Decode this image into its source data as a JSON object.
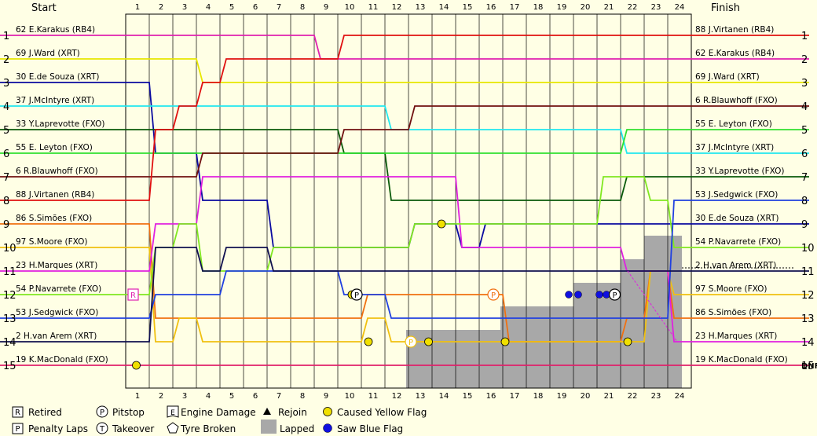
{
  "chart_data": {
    "type": "line",
    "title_left": "Start",
    "title_right": "Finish",
    "laps": [
      1,
      2,
      3,
      4,
      5,
      6,
      7,
      8,
      9,
      10,
      11,
      12,
      13,
      14,
      15,
      16,
      17,
      18,
      19,
      20,
      21,
      22,
      23,
      24
    ],
    "positions": [
      1,
      2,
      3,
      4,
      5,
      6,
      7,
      8,
      9,
      10,
      11,
      12,
      13,
      14,
      15
    ],
    "start_labels": [
      "62 E.Karakus (RB4)",
      "69 J.Ward (XRT)",
      "30 E.de Souza (XRT)",
      "37 J.McIntyre (XRT)",
      "33 Y.Laprevotte (FXO)",
      "55 E. Leyton (FXO)",
      "6 R.Blauwhoff (FXO)",
      "88 J.Virtanen (RB4)",
      "86 S.Simões (FXO)",
      "97 S.Moore (FXO)",
      "23 H.Marques (XRT)",
      "54 P.Navarrete (FXO)",
      "53 J.Sedgwick (FXO)",
      "2 H.van Arem (XRT)",
      "19 K.MacDonald (FXO)"
    ],
    "finish_labels": [
      "88 J.Virtanen (RB4)",
      "62 E.Karakus (RB4)",
      "69 J.Ward (XRT)",
      "6 R.Blauwhoff (FXO)",
      "55 E. Leyton (FXO)",
      "37 J.McIntyre (XRT)",
      "33 Y.Laprevotte (FXO)",
      "53 J.Sedgwick (FXO)",
      "30 E.de Souza (XRT)",
      "54 P.Navarrete (FXO)",
      "2 H.van Arem (XRT)",
      "97 S.Moore (FXO)",
      "86 S.Simões (FXO)",
      "23 H.Marques (XRT)",
      "19 K.MacDonald (FXO)"
    ],
    "dnf_label": "DNF",
    "series": [
      {
        "name": "62 E.Karakus (RB4)",
        "color": "#e020b0",
        "positions": [
          1,
          1,
          1,
          1,
          1,
          1,
          1,
          1,
          1,
          2,
          2,
          2,
          2,
          2,
          2,
          2,
          2,
          2,
          2,
          2,
          2,
          2,
          2,
          2,
          2
        ]
      },
      {
        "name": "69 J.Ward (XRT)",
        "color": "#e8e800",
        "positions": [
          2,
          2,
          2,
          2,
          3,
          3,
          3,
          3,
          3,
          3,
          3,
          3,
          3,
          3,
          3,
          3,
          3,
          3,
          3,
          3,
          3,
          3,
          3,
          3,
          3
        ]
      },
      {
        "name": "30 E.de Souza (XRT)",
        "color": "#0a0aa0",
        "positions": [
          3,
          3,
          6,
          6,
          8,
          8,
          8,
          10,
          10,
          10,
          10,
          10,
          10,
          9,
          9,
          10,
          9,
          9,
          9,
          9,
          9,
          9,
          9,
          9,
          9
        ]
      },
      {
        "name": "37 J.McIntyre (XRT)",
        "color": "#20e8f0",
        "positions": [
          4,
          4,
          4,
          4,
          4,
          4,
          4,
          4,
          4,
          4,
          4,
          4,
          5,
          5,
          5,
          5,
          5,
          5,
          5,
          5,
          5,
          5,
          6,
          6,
          6
        ]
      },
      {
        "name": "33 Y.Laprevotte (FXO)",
        "color": "#0a5a0a",
        "positions": [
          5,
          5,
          5,
          5,
          5,
          5,
          5,
          5,
          5,
          5,
          6,
          6,
          8,
          8,
          8,
          8,
          8,
          8,
          8,
          8,
          8,
          8,
          7,
          7,
          7
        ]
      },
      {
        "name": "55 E. Leyton (FXO)",
        "color": "#30e030",
        "positions": [
          6,
          6,
          6,
          6,
          6,
          6,
          6,
          6,
          6,
          6,
          6,
          6,
          6,
          6,
          6,
          6,
          6,
          6,
          6,
          6,
          6,
          6,
          5,
          5,
          5
        ]
      },
      {
        "name": "6 R.Blauwhoff (FXO)",
        "color": "#701010",
        "positions": [
          7,
          7,
          7,
          7,
          6,
          6,
          6,
          6,
          6,
          6,
          5,
          5,
          5,
          4,
          4,
          4,
          4,
          4,
          4,
          4,
          4,
          4,
          4,
          4,
          4
        ]
      },
      {
        "name": "88 J.Virtanen (RB4)",
        "color": "#e01010",
        "positions": [
          8,
          8,
          5,
          4,
          3,
          2,
          2,
          2,
          2,
          2,
          1,
          1,
          1,
          1,
          1,
          1,
          1,
          1,
          1,
          1,
          1,
          1,
          1,
          1,
          1
        ]
      },
      {
        "name": "86 S.Simões (FXO)",
        "color": "#f07010",
        "positions": [
          9,
          9,
          13,
          13,
          13,
          13,
          13,
          13,
          13,
          13,
          13,
          12,
          12,
          12,
          12,
          12,
          12,
          14,
          14,
          14,
          14,
          14,
          13,
          11,
          13
        ]
      },
      {
        "name": "97 S.Moore (FXO)",
        "color": "#f0c010",
        "positions": [
          10,
          10,
          14,
          13,
          14,
          14,
          14,
          14,
          14,
          14,
          14,
          13,
          14,
          14,
          14,
          14,
          14,
          14,
          14,
          14,
          14,
          14,
          14,
          11,
          12
        ]
      },
      {
        "name": "23 H.Marques (XRT)",
        "color": "#e020e0",
        "positions": [
          11,
          11,
          9,
          9,
          7,
          7,
          7,
          7,
          7,
          7,
          7,
          7,
          7,
          7,
          7,
          10,
          10,
          10,
          10,
          10,
          10,
          10,
          11,
          11,
          14
        ]
      },
      {
        "name": "54 P.Navarrete (FXO)",
        "color": "#80e820",
        "positions": [
          12,
          12,
          10,
          9,
          11,
          11,
          11,
          10,
          10,
          10,
          10,
          10,
          10,
          9,
          9,
          9,
          9,
          9,
          9,
          9,
          9,
          7,
          7,
          8,
          10
        ]
      },
      {
        "name": "53 J.Sedgwick (FXO)",
        "color": "#2040e0",
        "positions": [
          13,
          13,
          12,
          12,
          12,
          11,
          11,
          11,
          11,
          11,
          12,
          12,
          13,
          13,
          13,
          13,
          13,
          13,
          13,
          13,
          13,
          13,
          13,
          13,
          8
        ]
      },
      {
        "name": "2 H.van Arem (XRT)",
        "color": "#101050",
        "positions": [
          14,
          14,
          10,
          10,
          11,
          10,
          10,
          11,
          11,
          11,
          11,
          11,
          11,
          11,
          11,
          11,
          11,
          11,
          11,
          11,
          11,
          11,
          11,
          11,
          11
        ]
      },
      {
        "name": "19 K.MacDonald (FXO)",
        "color": "#e0206a",
        "positions": [
          15,
          15,
          15,
          15,
          15,
          15,
          15,
          15,
          15,
          15,
          15,
          15,
          15,
          15,
          15,
          15,
          15,
          15,
          15,
          15,
          15,
          15,
          15,
          15,
          15
        ]
      }
    ],
    "legend": [
      {
        "symbol": "R",
        "label": "Retired"
      },
      {
        "symbol": "P",
        "label": "Penalty Laps"
      },
      {
        "symbol": "P",
        "label": "Pitstop"
      },
      {
        "symbol": "T",
        "label": "Takeover"
      },
      {
        "symbol": "E",
        "label": "Engine Damage"
      },
      {
        "symbol": "tyre",
        "label": "Tyre Broken"
      },
      {
        "symbol": "triangle",
        "label": "Rejoin"
      },
      {
        "symbol": "lapped",
        "label": "Lapped"
      },
      {
        "symbol": "yellow",
        "label": "Caused Yellow Flag"
      },
      {
        "symbol": "blue",
        "label": "Saw Blue Flag"
      }
    ],
    "colors": {
      "background": "#ffffe5",
      "grid": "#000000",
      "lapped": "#a8a8a8",
      "yellow_flag": "#f0e000",
      "blue_flag": "#1010e0"
    }
  }
}
